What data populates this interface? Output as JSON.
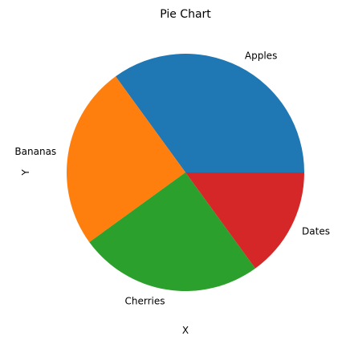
{
  "chart_data": {
    "type": "pie",
    "title": "Pie Chart",
    "xlabel": "X",
    "ylabel": "Y",
    "categories": [
      "Apples",
      "Bananas",
      "Cherries",
      "Dates"
    ],
    "values": [
      35,
      25,
      25,
      15
    ],
    "colors": [
      "#1f77b4",
      "#ff7f0e",
      "#2ca02c",
      "#d62728"
    ],
    "start_angle_deg": 0,
    "direction": "counterclockwise",
    "legend": "none"
  }
}
